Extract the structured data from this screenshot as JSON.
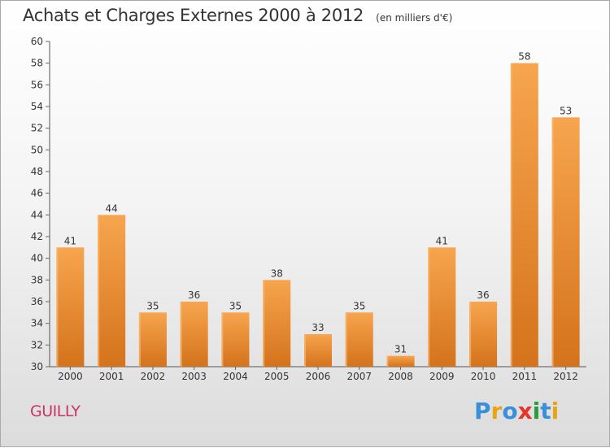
{
  "header": {
    "title": "Achats et Charges Externes 2000 à 2012",
    "unit": "(en milliers d'€)"
  },
  "footer": {
    "town": "GUILLY",
    "logo_text": "Proxiti",
    "logo_colors": [
      "#3a8fd9",
      "#e8a317",
      "#3a8fd9",
      "#e5342b",
      "#2a9d3a",
      "#3a8fd9",
      "#e8a317"
    ]
  },
  "colors": {
    "bar_top": "#f7a54f",
    "bar_bottom": "#d4731b",
    "axis": "#555555",
    "grid_tick": "#666666",
    "town": "#cc3366"
  },
  "chart_data": {
    "type": "bar",
    "categories": [
      "2000",
      "2001",
      "2002",
      "2003",
      "2004",
      "2005",
      "2006",
      "2007",
      "2008",
      "2009",
      "2010",
      "2011",
      "2012"
    ],
    "values": [
      41,
      44,
      35,
      36,
      35,
      38,
      33,
      35,
      31,
      41,
      36,
      58,
      53
    ],
    "ylim": [
      30,
      60
    ],
    "ytick_step": 2,
    "grid": false,
    "data_labels": true
  }
}
